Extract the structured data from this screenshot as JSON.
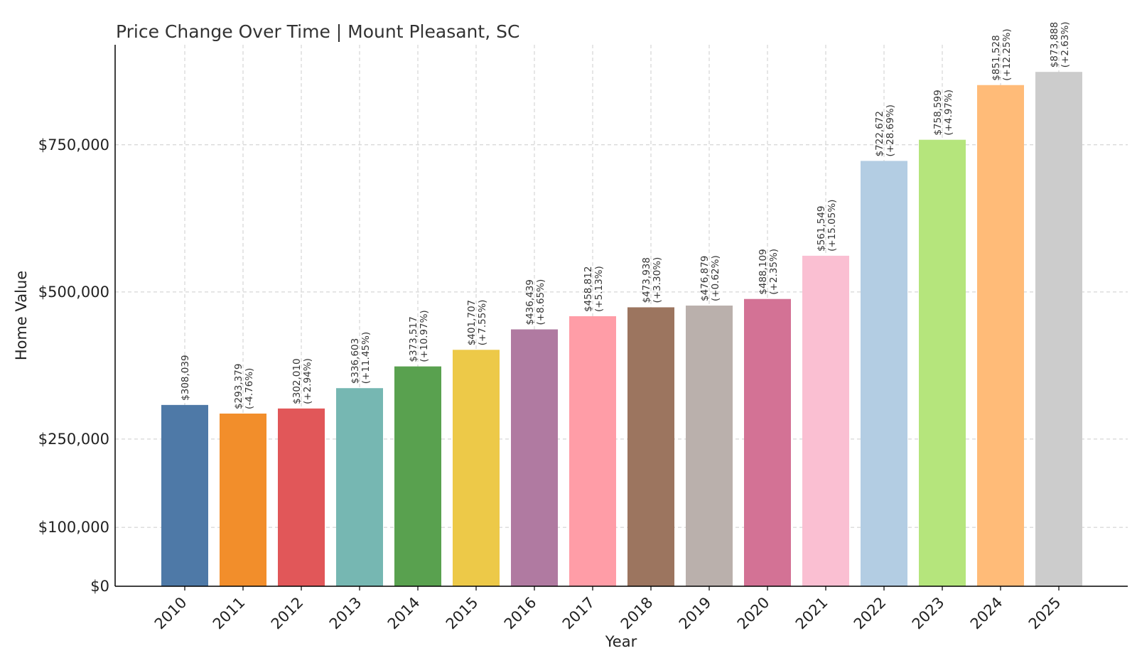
{
  "chart_data": {
    "type": "bar",
    "title": "Price Change Over Time | Mount Pleasant, SC",
    "xlabel": "Year",
    "ylabel": "Home Value",
    "ylim": [
      0,
      920000
    ],
    "grid": true,
    "yticks": [
      {
        "value": 0,
        "label": "$0"
      },
      {
        "value": 100000,
        "label": "$100,000"
      },
      {
        "value": 250000,
        "label": "$250,000"
      },
      {
        "value": 500000,
        "label": "$500,000"
      },
      {
        "value": 750000,
        "label": "$750,000"
      }
    ],
    "categories": [
      "2010",
      "2011",
      "2012",
      "2013",
      "2014",
      "2015",
      "2016",
      "2017",
      "2018",
      "2019",
      "2020",
      "2021",
      "2022",
      "2023",
      "2024",
      "2025"
    ],
    "values": [
      308039,
      293379,
      302010,
      336603,
      373517,
      401707,
      436439,
      458812,
      473938,
      476879,
      488109,
      561549,
      722672,
      758599,
      851528,
      873888
    ],
    "value_labels": [
      "$308,039",
      "$293,379",
      "$302,010",
      "$336,603",
      "$373,517",
      "$401,707",
      "$436,439",
      "$458,812",
      "$473,938",
      "$476,879",
      "$488,109",
      "$561,549",
      "$722,672",
      "$758,599",
      "$851,528",
      "$873,888"
    ],
    "change_labels": [
      "",
      "(-4.76%)",
      "(+2.94%)",
      "(+11.45%)",
      "(+10.97%)",
      "(+7.55%)",
      "(+8.65%)",
      "(+5.13%)",
      "(+3.30%)",
      "(+0.62%)",
      "(+2.35%)",
      "(+15.05%)",
      "(+28.69%)",
      "(+4.97%)",
      "(+12.25%)",
      "(+2.63%)"
    ],
    "colors": [
      "#4e79a7",
      "#f28e2b",
      "#e15759",
      "#76b7b2",
      "#59a14f",
      "#edc948",
      "#b07aa1",
      "#ff9da7",
      "#9c755f",
      "#bab0ac",
      "#d37295",
      "#fabfd2",
      "#b3cde3",
      "#b5e57c",
      "#ffbb78",
      "#cccccc"
    ]
  }
}
